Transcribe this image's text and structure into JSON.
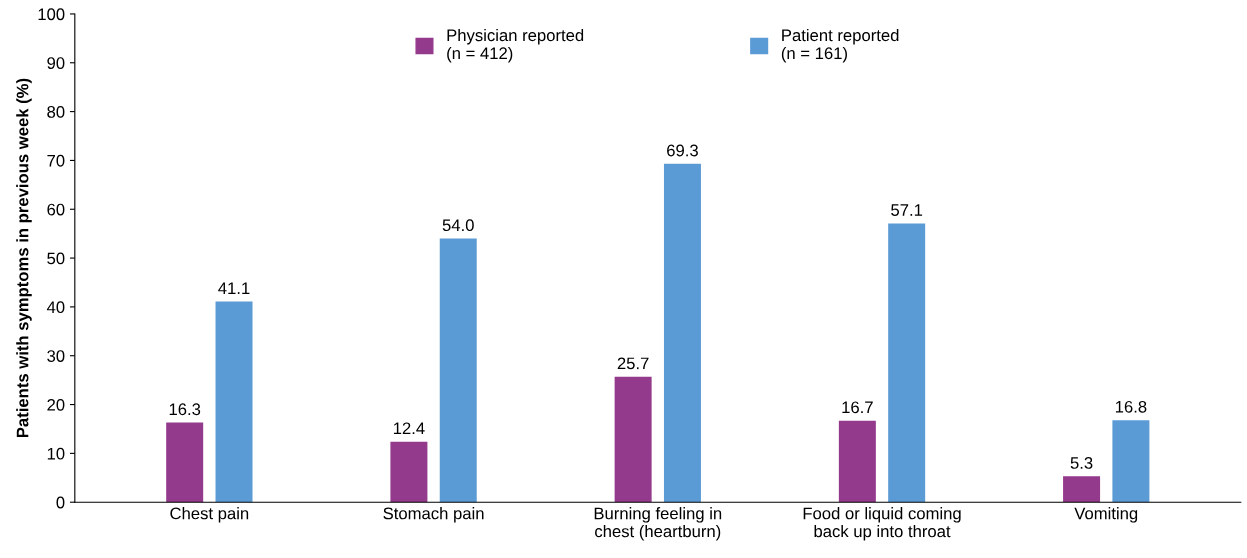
{
  "chart_data": {
    "type": "bar",
    "ylabel": "Patients with symptoms in previous week (%)",
    "categories": [
      "Chest pain",
      "Stomach pain",
      "Burning feeling in\nchest (heartburn)",
      "Food or liquid coming\nback up into throat",
      "Vomiting"
    ],
    "series": [
      {
        "name": "Physician reported\n(n = 412)",
        "color": "#943a8c",
        "values": [
          16.3,
          12.4,
          25.7,
          16.7,
          5.3
        ],
        "value_labels": [
          "16.3",
          "12.4",
          "25.7",
          "16.7",
          "5.3"
        ]
      },
      {
        "name": "Patient reported\n(n = 161)",
        "color": "#5b9bd5",
        "values": [
          41.1,
          54.0,
          69.3,
          57.1,
          16.8
        ],
        "value_labels": [
          "41.1",
          "54.0",
          "69.3",
          "57.1",
          "16.8"
        ]
      }
    ],
    "ylim": [
      0,
      100
    ],
    "yticks": [
      0,
      10,
      20,
      30,
      40,
      50,
      60,
      70,
      80,
      90,
      100
    ],
    "grid": false,
    "legend": "top"
  }
}
